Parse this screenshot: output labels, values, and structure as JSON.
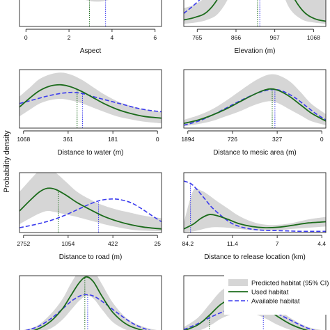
{
  "figure": {
    "ylabel": "Probability density",
    "colors": {
      "predicted": "#d6d6d6",
      "used": "#1b6b1b",
      "available": "#3a3aee"
    }
  },
  "legend": {
    "items": [
      {
        "key": "predicted",
        "label": "Predicted habitat (95% CI)"
      },
      {
        "key": "used",
        "label": "Used habitat"
      },
      {
        "key": "available",
        "label": "Available habitat"
      }
    ]
  },
  "chart_data": [
    {
      "type": "area",
      "xlabel": "Aspect",
      "ticks": [
        "0",
        "2",
        "4",
        "6"
      ],
      "xlim": [
        -0.3,
        6.3
      ],
      "tick_values": [
        0,
        2,
        4,
        6
      ],
      "ylim": [
        0,
        1
      ],
      "series": [
        {
          "name": "Used habitat",
          "x": [
            -0.3,
            0.5,
            1.2,
            2,
            2.6,
            3.2,
            3.8,
            4.4,
            5,
            5.6,
            6.3
          ],
          "y": [
            0.84,
            0.78,
            0.68,
            0.56,
            0.46,
            0.41,
            0.42,
            0.53,
            0.67,
            0.77,
            0.84
          ]
        },
        {
          "name": "Available habitat",
          "x": [
            -0.3,
            0.5,
            1.2,
            1.8,
            2.4,
            3.2,
            4,
            4.6,
            5.4,
            6.3
          ],
          "y": [
            0.62,
            0.72,
            0.79,
            0.8,
            0.77,
            0.69,
            0.66,
            0.72,
            0.6,
            0.5
          ]
        }
      ],
      "band_upper": [
        0.99,
        0.99,
        0.98,
        0.93,
        0.82,
        0.73,
        0.74,
        0.84,
        0.95,
        0.99,
        0.99
      ],
      "band_lower": [
        0.4,
        0.38,
        0.32,
        0.25,
        0.21,
        0.19,
        0.2,
        0.24,
        0.3,
        0.36,
        0.4
      ],
      "medians": {
        "used": 2.95,
        "available": 3.7
      }
    },
    {
      "type": "area",
      "xlabel": "Elevation (m)",
      "ticks": [
        "765",
        "866",
        "967",
        "1068"
      ],
      "xlim": [
        730,
        1100
      ],
      "tick_values": [
        765,
        866,
        967,
        1068
      ],
      "ylim": [
        0,
        1
      ],
      "series": [
        {
          "name": "Used habitat",
          "x": [
            730,
            760,
            790,
            820,
            850,
            880,
            905,
            920,
            935,
            950,
            970,
            990,
            1010,
            1040,
            1070,
            1100
          ],
          "y": [
            0.05,
            0.07,
            0.11,
            0.22,
            0.42,
            0.72,
            0.95,
            1.02,
            1.0,
            0.9,
            0.68,
            0.45,
            0.26,
            0.12,
            0.06,
            0.04
          ]
        },
        {
          "name": "Available habitat",
          "x": [
            730,
            770,
            810,
            850,
            880,
            910,
            930,
            960,
            990,
            1020,
            1050,
            1080,
            1100
          ],
          "y": [
            0.1,
            0.2,
            0.34,
            0.52,
            0.7,
            0.85,
            0.9,
            0.86,
            0.72,
            0.56,
            0.42,
            0.3,
            0.24
          ]
        }
      ],
      "band_upper": [
        0.14,
        0.17,
        0.24,
        0.4,
        0.62,
        0.92,
        1.1,
        1.12,
        1.12,
        1.08,
        0.98,
        0.82,
        0.62,
        0.42,
        0.27,
        0.2
      ],
      "band_lower": [
        0.02,
        0.03,
        0.05,
        0.1,
        0.24,
        0.48,
        0.7,
        0.78,
        0.76,
        0.66,
        0.44,
        0.24,
        0.12,
        0.05,
        0.03,
        0.02
      ],
      "medians": {
        "used": 922,
        "available": 928
      }
    },
    {
      "type": "area",
      "xlabel": "Distance to water (m)",
      "ticks": [
        "1068",
        "361",
        "181",
        "0"
      ],
      "xlim": [
        -0.03,
        1.03
      ],
      "tick_values": [
        0,
        0.333,
        0.667,
        1.0
      ],
      "x_note": "tick labels printed in non-linear order; x is on the chart's tick scale",
      "ylim": [
        0,
        1
      ],
      "series": [
        {
          "name": "Used habitat",
          "x": [
            -0.03,
            0.05,
            0.12,
            0.2,
            0.28,
            0.36,
            0.44,
            0.52,
            0.6,
            0.7,
            0.8,
            0.9,
            1.03
          ],
          "y": [
            0.36,
            0.52,
            0.64,
            0.72,
            0.74,
            0.7,
            0.62,
            0.52,
            0.42,
            0.32,
            0.25,
            0.2,
            0.17
          ]
        },
        {
          "name": "Available habitat",
          "x": [
            -0.03,
            0.1,
            0.2,
            0.3,
            0.38,
            0.46,
            0.55,
            0.65,
            0.75,
            0.85,
            0.95,
            1.03
          ],
          "y": [
            0.42,
            0.5,
            0.56,
            0.6,
            0.61,
            0.58,
            0.52,
            0.46,
            0.4,
            0.34,
            0.3,
            0.28
          ]
        }
      ],
      "band_upper": [
        0.54,
        0.7,
        0.84,
        0.92,
        0.95,
        0.91,
        0.82,
        0.7,
        0.58,
        0.46,
        0.38,
        0.32,
        0.28
      ],
      "band_lower": [
        0.2,
        0.32,
        0.42,
        0.48,
        0.5,
        0.47,
        0.42,
        0.35,
        0.28,
        0.2,
        0.15,
        0.11,
        0.08
      ],
      "medians": {
        "used": 0.4,
        "available": 0.44
      }
    },
    {
      "type": "area",
      "xlabel": "Distance to mesic area (m)",
      "ticks": [
        "1894",
        "726",
        "327",
        "0"
      ],
      "xlim": [
        -0.03,
        1.03
      ],
      "tick_values": [
        0,
        0.333,
        0.667,
        1.0
      ],
      "x_note": "tick labels printed in non-linear order; x is on the chart's tick scale",
      "ylim": [
        0,
        1
      ],
      "series": [
        {
          "name": "Used habitat",
          "x": [
            -0.03,
            0.08,
            0.18,
            0.28,
            0.38,
            0.48,
            0.56,
            0.62,
            0.68,
            0.76,
            0.84,
            0.92,
            1.03
          ],
          "y": [
            0.08,
            0.14,
            0.22,
            0.32,
            0.44,
            0.56,
            0.64,
            0.67,
            0.64,
            0.54,
            0.4,
            0.26,
            0.12
          ]
        },
        {
          "name": "Available habitat",
          "x": [
            -0.03,
            0.08,
            0.18,
            0.3,
            0.42,
            0.52,
            0.6,
            0.66,
            0.72,
            0.8,
            0.88,
            0.96,
            1.03
          ],
          "y": [
            0.05,
            0.12,
            0.22,
            0.36,
            0.5,
            0.6,
            0.65,
            0.66,
            0.62,
            0.52,
            0.38,
            0.24,
            0.14
          ]
        }
      ],
      "band_upper": [
        0.14,
        0.22,
        0.32,
        0.46,
        0.62,
        0.78,
        0.88,
        0.92,
        0.9,
        0.8,
        0.62,
        0.42,
        0.24
      ],
      "band_lower": [
        0.03,
        0.07,
        0.12,
        0.2,
        0.28,
        0.38,
        0.44,
        0.46,
        0.42,
        0.32,
        0.22,
        0.12,
        0.05
      ],
      "medians": {
        "used": 0.63,
        "available": 0.65
      }
    },
    {
      "type": "area",
      "xlabel": "Distance to road (m)",
      "ticks": [
        "2752",
        "1054",
        "422",
        "25"
      ],
      "xlim": [
        -0.03,
        1.03
      ],
      "tick_values": [
        0,
        0.333,
        0.667,
        1.0
      ],
      "x_note": "tick labels printed in non-linear order; x is on the chart's tick scale",
      "ylim": [
        0,
        1
      ],
      "series": [
        {
          "name": "Used habitat",
          "x": [
            -0.03,
            0.05,
            0.12,
            0.18,
            0.24,
            0.32,
            0.4,
            0.5,
            0.6,
            0.7,
            0.8,
            0.9,
            1.03
          ],
          "y": [
            0.36,
            0.54,
            0.68,
            0.74,
            0.72,
            0.62,
            0.5,
            0.38,
            0.27,
            0.19,
            0.13,
            0.09,
            0.06
          ]
        },
        {
          "name": "Available habitat",
          "x": [
            -0.03,
            0.1,
            0.2,
            0.3,
            0.4,
            0.5,
            0.58,
            0.66,
            0.72,
            0.8,
            0.88,
            0.96,
            1.03
          ],
          "y": [
            0.08,
            0.14,
            0.2,
            0.28,
            0.38,
            0.48,
            0.54,
            0.56,
            0.55,
            0.5,
            0.4,
            0.28,
            0.18
          ]
        }
      ],
      "band_upper": [
        0.68,
        0.88,
        1.04,
        1.08,
        1.0,
        0.84,
        0.68,
        0.55,
        0.45,
        0.38,
        0.33,
        0.28,
        0.24
      ],
      "band_lower": [
        0.14,
        0.24,
        0.32,
        0.36,
        0.34,
        0.3,
        0.26,
        0.2,
        0.14,
        0.09,
        0.05,
        0.03,
        0.02
      ],
      "medians": {
        "used": 0.26,
        "available": 0.56
      }
    },
    {
      "type": "area",
      "xlabel": "Distance to release location (km)",
      "ticks": [
        "84.2",
        "11.4",
        "7",
        "4.4"
      ],
      "xlim": [
        -0.03,
        1.03
      ],
      "tick_values": [
        0,
        0.333,
        0.667,
        1.0
      ],
      "x_note": "tick labels printed in non-linear order; x is on the chart's tick scale",
      "ylim": [
        0,
        1
      ],
      "series": [
        {
          "name": "Used habitat",
          "x": [
            -0.03,
            0.04,
            0.1,
            0.16,
            0.22,
            0.3,
            0.38,
            0.48,
            0.58,
            0.68,
            0.78,
            0.9,
            1.03
          ],
          "y": [
            0.06,
            0.14,
            0.24,
            0.3,
            0.28,
            0.22,
            0.15,
            0.1,
            0.08,
            0.09,
            0.12,
            0.16,
            0.18
          ]
        },
        {
          "name": "Available habitat",
          "x": [
            -0.03,
            0.02,
            0.06,
            0.12,
            0.18,
            0.26,
            0.34,
            0.44,
            0.55,
            0.7,
            0.85,
            1.03
          ],
          "y": [
            0.86,
            0.82,
            0.74,
            0.58,
            0.42,
            0.26,
            0.14,
            0.07,
            0.04,
            0.03,
            0.02,
            0.02
          ]
        }
      ],
      "band_upper": [
        0.16,
        0.7,
        0.7,
        0.62,
        0.52,
        0.4,
        0.28,
        0.18,
        0.13,
        0.13,
        0.16,
        0.22,
        0.26
      ],
      "band_lower": [
        0.01,
        0.02,
        0.05,
        0.08,
        0.09,
        0.08,
        0.06,
        0.04,
        0.03,
        0.04,
        0.06,
        0.08,
        0.1
      ],
      "medians": {
        "used": 0.02,
        "available": 0.02
      }
    },
    {
      "type": "area",
      "xlabel": "",
      "ticks": [],
      "xlim": [
        0,
        1
      ],
      "tick_values": [],
      "ylim": [
        0,
        1
      ],
      "series": [
        {
          "name": "Used habitat",
          "x": [
            0,
            0.12,
            0.22,
            0.3,
            0.36,
            0.42,
            0.47,
            0.52,
            0.58,
            0.66,
            0.76,
            0.88,
            1.0
          ],
          "y": [
            0.04,
            0.1,
            0.24,
            0.44,
            0.66,
            0.88,
            0.98,
            0.9,
            0.66,
            0.38,
            0.18,
            0.08,
            0.04
          ]
        },
        {
          "name": "Available habitat",
          "x": [
            0,
            0.12,
            0.22,
            0.3,
            0.38,
            0.45,
            0.52,
            0.6,
            0.7,
            0.8,
            0.9,
            1.0
          ],
          "y": [
            0.06,
            0.14,
            0.28,
            0.44,
            0.6,
            0.68,
            0.66,
            0.54,
            0.36,
            0.2,
            0.1,
            0.05
          ]
        }
      ],
      "band_upper": [
        0.08,
        0.16,
        0.36,
        0.6,
        0.86,
        1.08,
        1.16,
        1.1,
        0.86,
        0.54,
        0.28,
        0.14,
        0.08
      ],
      "band_lower": [
        0.02,
        0.05,
        0.12,
        0.26,
        0.42,
        0.58,
        0.66,
        0.62,
        0.44,
        0.22,
        0.09,
        0.03,
        0.02
      ],
      "medians": {
        "used": 0.46,
        "available": 0.48
      }
    },
    {
      "type": "area",
      "xlabel": "",
      "ticks": [],
      "xlim": [
        0,
        1
      ],
      "tick_values": [],
      "ylim": [
        0,
        1
      ],
      "series": [
        {
          "name": "Used habitat",
          "x": [
            0,
            0.1,
            0.18,
            0.26,
            0.34,
            0.42,
            0.5,
            0.58,
            0.66,
            0.76,
            0.88,
            1.0
          ],
          "y": [
            0.08,
            0.18,
            0.34,
            0.52,
            0.62,
            0.64,
            0.58,
            0.46,
            0.32,
            0.18,
            0.08,
            0.04
          ]
        },
        {
          "name": "Available habitat",
          "x": [
            0,
            0.1,
            0.2,
            0.3,
            0.38,
            0.46,
            0.54,
            0.62,
            0.7,
            0.8,
            0.9,
            1.0
          ],
          "y": [
            0.1,
            0.2,
            0.32,
            0.42,
            0.48,
            0.5,
            0.48,
            0.42,
            0.32,
            0.2,
            0.1,
            0.05
          ]
        }
      ],
      "band_upper": [
        0.14,
        0.3,
        0.52,
        0.74,
        0.86,
        0.88,
        0.8,
        0.64,
        0.46,
        0.28,
        0.14,
        0.08
      ],
      "band_lower": [
        0.04,
        0.08,
        0.16,
        0.28,
        0.36,
        0.4,
        0.36,
        0.28,
        0.18,
        0.09,
        0.04,
        0.02
      ],
      "medians": {
        "used": 0.18,
        "available": 0.56
      }
    }
  ]
}
